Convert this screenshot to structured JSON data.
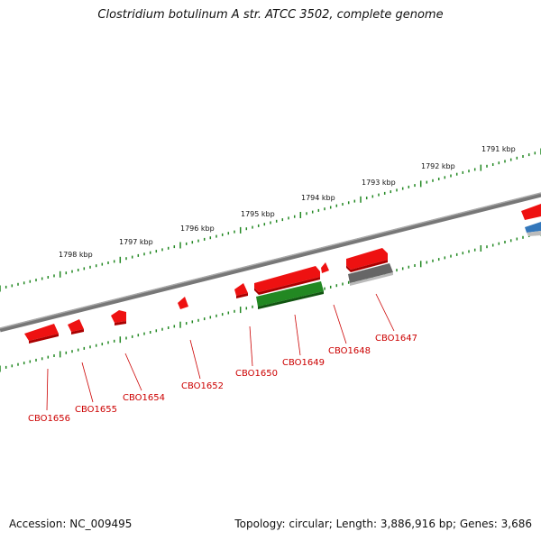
{
  "title": "Clostridium botulinum A str. ATCC 3502, complete genome",
  "footer": {
    "accession": "Accession: NC_009495",
    "topology": "Topology: circular; Length: 3,886,916 bp; Genes: 3,686"
  },
  "colors": {
    "forward_gene": "#ee1111",
    "reverse_gene_green": "#228822",
    "gray_gene": "#666666",
    "blue_gene": "#3377bb",
    "backbone": "#777777",
    "tick": "#228822",
    "label": "#cc0000"
  },
  "scale_labels": [
    "1791 kbp",
    "1792 kbp",
    "1793 kbp",
    "1794 kbp",
    "1795 kbp",
    "1796 kbp",
    "1797 kbp",
    "1798 kbp"
  ],
  "gene_labels": [
    "CBO1647",
    "CBO1648",
    "CBO1649",
    "CBO1650",
    "CBO1652",
    "CBO1654",
    "CBO1655",
    "CBO1656"
  ]
}
